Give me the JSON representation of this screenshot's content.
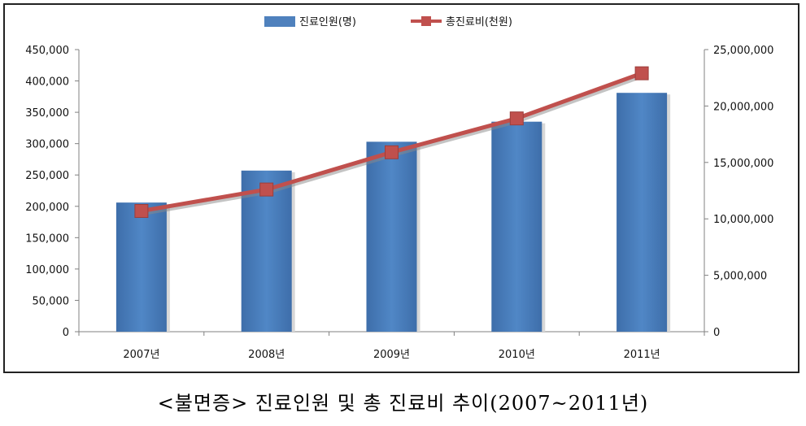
{
  "caption": "<불면증> 진료인원 및 총 진료비 추이(2007~2011년)",
  "chart_data": {
    "type": "bar+line",
    "categories": [
      "2007년",
      "2008년",
      "2009년",
      "2010년",
      "2011년"
    ],
    "series": [
      {
        "name": "진료인원(명)",
        "type": "bar",
        "axis": "left",
        "color": "#4F81BD",
        "values": [
          206000,
          257000,
          303000,
          335000,
          381000
        ]
      },
      {
        "name": "총진료비(천원)",
        "type": "line",
        "axis": "right",
        "color": "#C0504D",
        "values": [
          10700000,
          12600000,
          15900000,
          18900000,
          22900000
        ]
      }
    ],
    "y_left": {
      "min": 0,
      "max": 450000,
      "step": 50000,
      "tick_labels": [
        "0",
        "50,000",
        "100,000",
        "150,000",
        "200,000",
        "250,000",
        "300,000",
        "350,000",
        "400,000",
        "450,000"
      ]
    },
    "y_right": {
      "min": 0,
      "max": 25000000,
      "step": 5000000,
      "tick_labels": [
        "0",
        "5,000,000",
        "10,000,000",
        "15,000,000",
        "20,000,000",
        "25,000,000"
      ]
    },
    "legend_position": "top",
    "grid": false
  }
}
